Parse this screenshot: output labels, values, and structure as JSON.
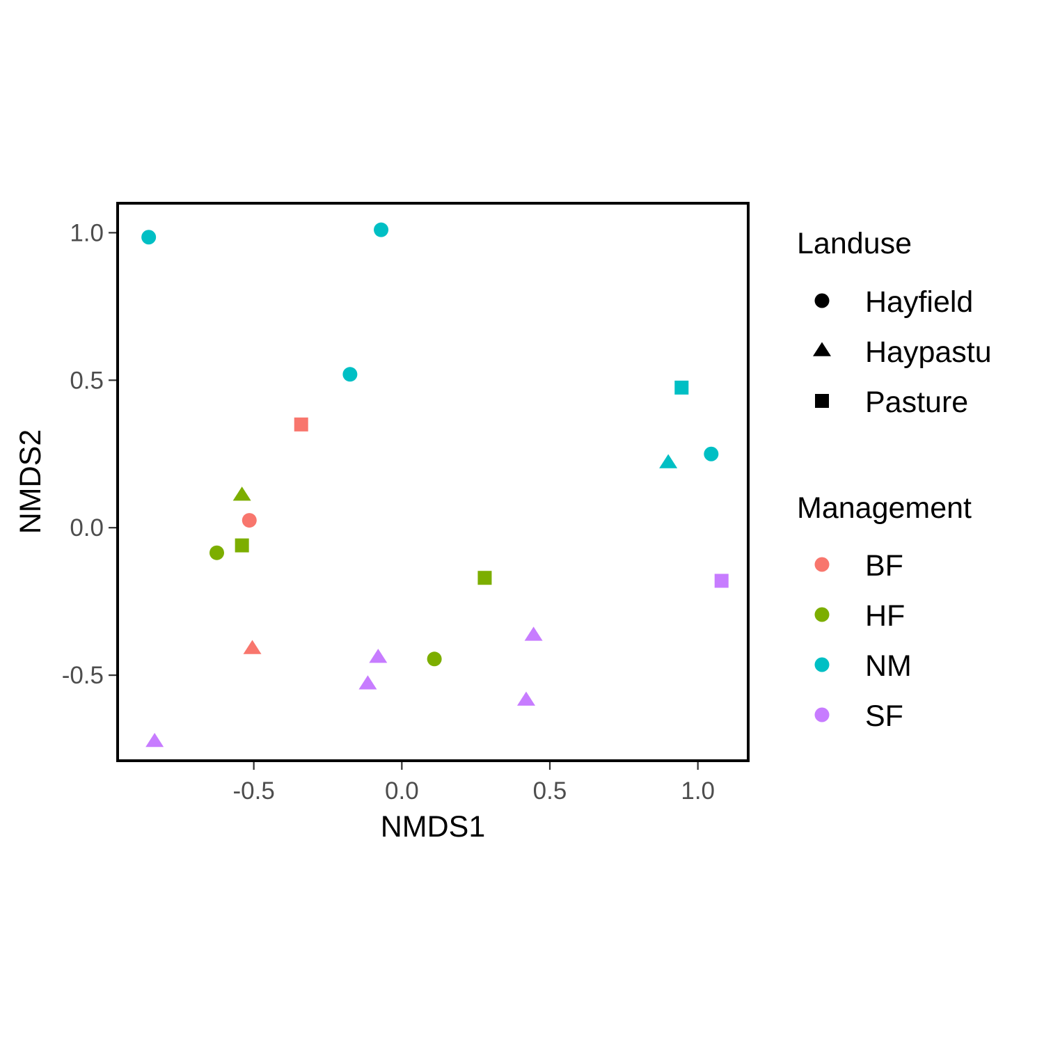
{
  "chart_data": {
    "type": "scatter",
    "xlabel": "NMDS1",
    "ylabel": "NMDS2",
    "xlim": [
      -0.96,
      1.17
    ],
    "ylim": [
      -0.79,
      1.1
    ],
    "xticks": [
      -0.5,
      0.0,
      0.5,
      1.0
    ],
    "xtick_labels": [
      "-0.5",
      "0.0",
      "0.5",
      "1.0"
    ],
    "yticks": [
      -0.5,
      0.0,
      0.5,
      1.0
    ],
    "ytick_labels": [
      "-0.5",
      "0.0",
      "0.5",
      "1.0"
    ],
    "grid": false,
    "legend_position": "right",
    "legends": {
      "shape": {
        "title": "Landuse",
        "items": [
          {
            "label": "Hayfield",
            "shape": "circle"
          },
          {
            "label": "Haypastu",
            "shape": "triangle"
          },
          {
            "label": "Pasture",
            "shape": "square"
          }
        ]
      },
      "color": {
        "title": "Management",
        "items": [
          {
            "label": "BF",
            "color": "#F8766D"
          },
          {
            "label": "HF",
            "color": "#7CAE00"
          },
          {
            "label": "NM",
            "color": "#00BFC4"
          },
          {
            "label": "SF",
            "color": "#C77CFF"
          }
        ]
      }
    },
    "points": [
      {
        "x": -0.855,
        "y": 0.985,
        "landuse": "Hayfield",
        "management": "NM"
      },
      {
        "x": -0.07,
        "y": 1.01,
        "landuse": "Hayfield",
        "management": "NM"
      },
      {
        "x": -0.175,
        "y": 0.52,
        "landuse": "Hayfield",
        "management": "NM"
      },
      {
        "x": 1.045,
        "y": 0.25,
        "landuse": "Hayfield",
        "management": "NM"
      },
      {
        "x": 0.9,
        "y": 0.22,
        "landuse": "Haypastu",
        "management": "NM"
      },
      {
        "x": 0.945,
        "y": 0.475,
        "landuse": "Pasture",
        "management": "NM"
      },
      {
        "x": -0.34,
        "y": 0.35,
        "landuse": "Pasture",
        "management": "BF"
      },
      {
        "x": -0.515,
        "y": 0.025,
        "landuse": "Hayfield",
        "management": "BF"
      },
      {
        "x": -0.505,
        "y": -0.41,
        "landuse": "Haypastu",
        "management": "BF"
      },
      {
        "x": -0.54,
        "y": 0.11,
        "landuse": "Haypastu",
        "management": "HF"
      },
      {
        "x": -0.625,
        "y": -0.085,
        "landuse": "Hayfield",
        "management": "HF"
      },
      {
        "x": -0.54,
        "y": -0.06,
        "landuse": "Pasture",
        "management": "HF"
      },
      {
        "x": 0.28,
        "y": -0.17,
        "landuse": "Pasture",
        "management": "HF"
      },
      {
        "x": 0.11,
        "y": -0.445,
        "landuse": "Hayfield",
        "management": "HF"
      },
      {
        "x": 1.08,
        "y": -0.18,
        "landuse": "Pasture",
        "management": "SF"
      },
      {
        "x": 0.445,
        "y": -0.365,
        "landuse": "Haypastu",
        "management": "SF"
      },
      {
        "x": -0.08,
        "y": -0.44,
        "landuse": "Haypastu",
        "management": "SF"
      },
      {
        "x": -0.115,
        "y": -0.53,
        "landuse": "Haypastu",
        "management": "SF"
      },
      {
        "x": 0.42,
        "y": -0.585,
        "landuse": "Haypastu",
        "management": "SF"
      },
      {
        "x": -0.835,
        "y": -0.725,
        "landuse": "Haypastu",
        "management": "SF"
      }
    ]
  }
}
